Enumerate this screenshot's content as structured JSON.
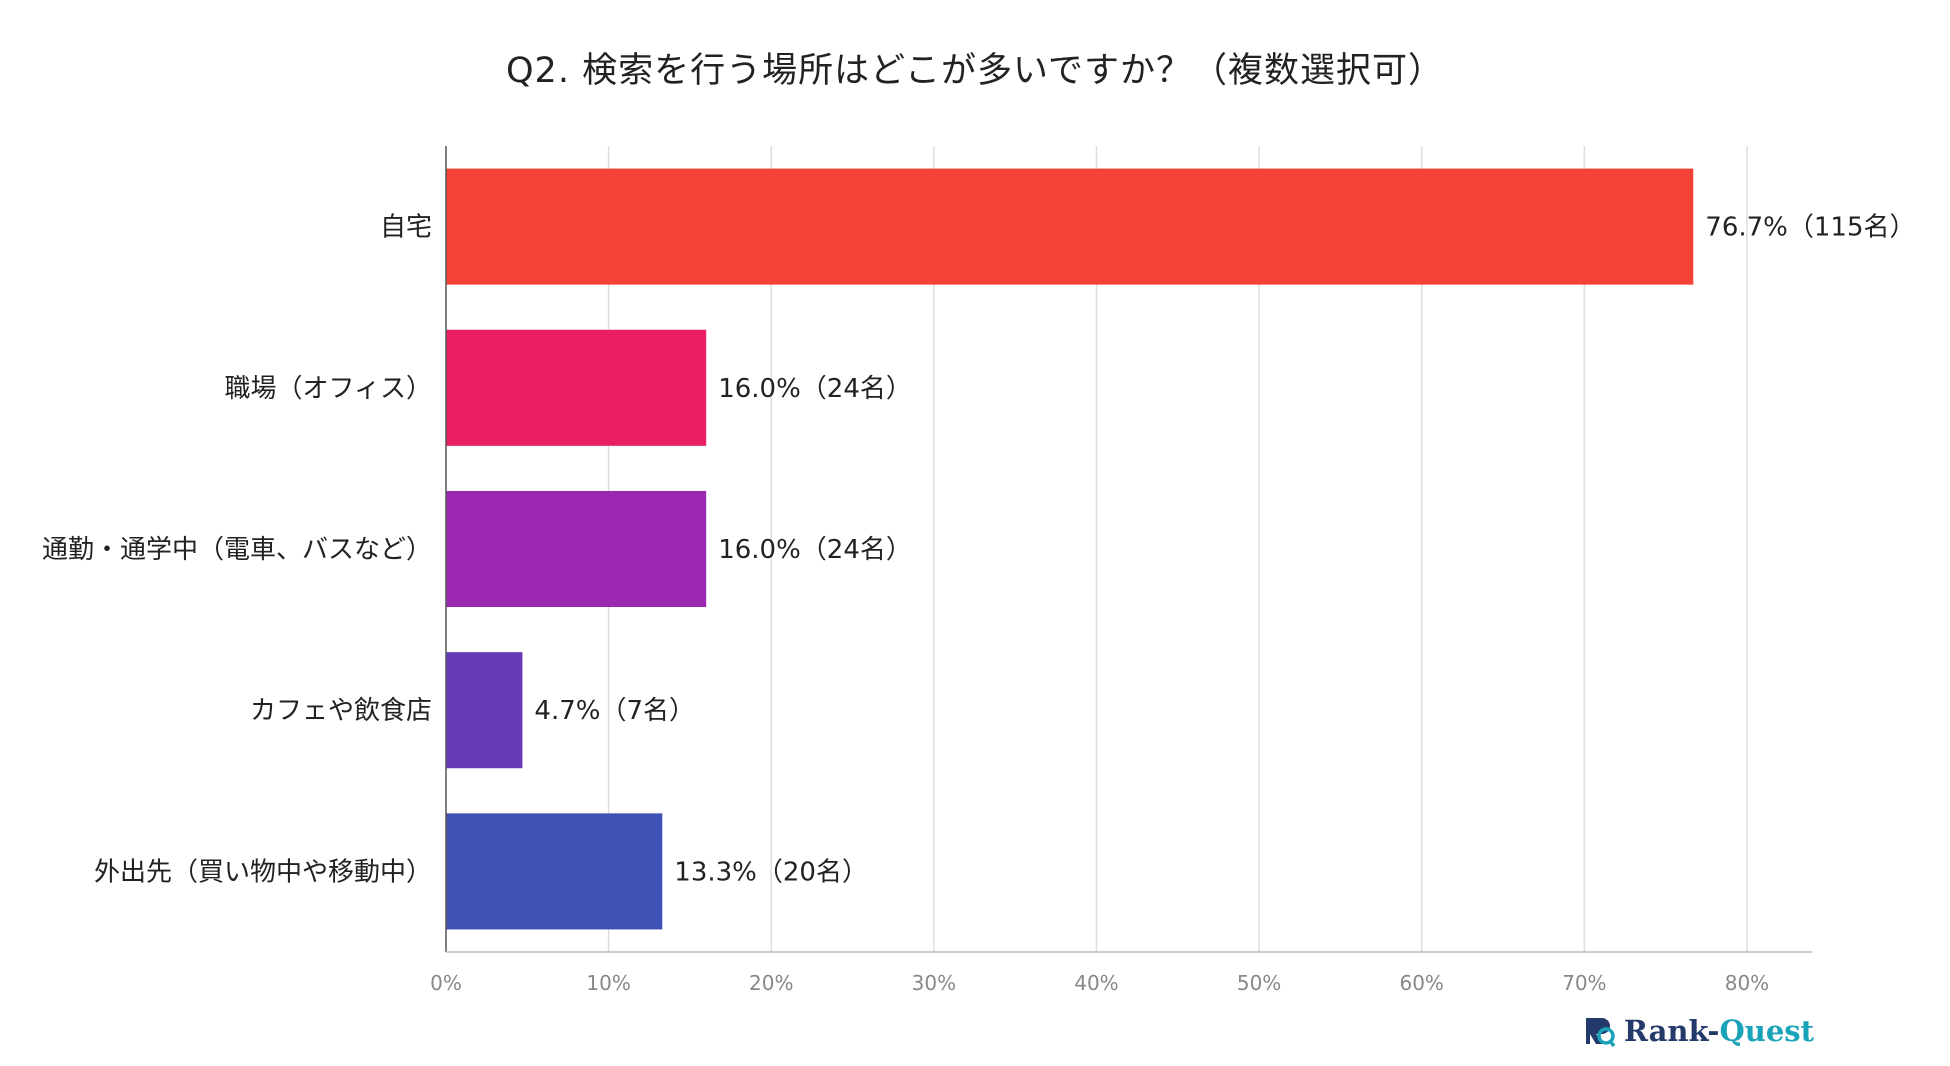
{
  "chart_data": {
    "type": "bar",
    "orientation": "horizontal",
    "title": "Q2. 検索を行う場所はどこが多いですか？（複数選択可）",
    "categories": [
      "自宅",
      "職場（オフィス）",
      "通勤・通学中（電車、バスなど）",
      "カフェや飲食店",
      "外出先（買い物中や移動中）"
    ],
    "values": [
      76.7,
      16.0,
      16.0,
      4.7,
      13.3
    ],
    "data_labels": [
      "76.7%（115名）",
      "16.0%（24名）",
      "16.0%（24名）",
      "4.7%（7名）",
      "13.3%（20名）"
    ],
    "colors": [
      "#f44336",
      "#e91e63",
      "#9c27b0",
      "#673ab7",
      "#3f51b5"
    ],
    "xlim": [
      0,
      84
    ],
    "ticks": [
      0,
      10,
      20,
      30,
      40,
      50,
      60,
      70,
      80
    ],
    "tick_labels": [
      "0%",
      "10%",
      "20%",
      "30%",
      "40%",
      "50%",
      "60%",
      "70%",
      "80%"
    ],
    "grid": true,
    "xlabel": "",
    "ylabel": ""
  },
  "brand": {
    "name_part1": "Rank-",
    "name_part2": "Quest",
    "logo_icon": "rank-quest-logo-icon",
    "colors": {
      "primary": "#243a6b",
      "accent": "#19a3b8"
    }
  }
}
